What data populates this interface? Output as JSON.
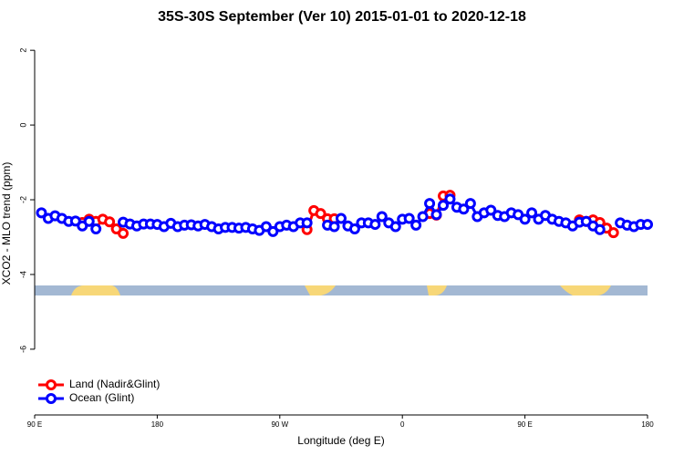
{
  "chart_data": {
    "type": "line",
    "title": "35S-30S September (Ver 10)   2015-01-01 to 2020-12-18",
    "x_label": "Longitude (deg E)",
    "y_label": "XCO2 - MLO trend (ppm)",
    "x": [
      95,
      100,
      105,
      110,
      115,
      120,
      125,
      130,
      135,
      140,
      145,
      150,
      155,
      160,
      165,
      170,
      175,
      180,
      185,
      190,
      195,
      200,
      205,
      210,
      215,
      220,
      225,
      230,
      235,
      240,
      245,
      250,
      255,
      260,
      265,
      270,
      275,
      280,
      285,
      290,
      295,
      300,
      305,
      310,
      315,
      320,
      325,
      330,
      335,
      340,
      345,
      350,
      355,
      360,
      365,
      370,
      375,
      380,
      385,
      390,
      395,
      400,
      405,
      410,
      415,
      420,
      425,
      430,
      435,
      440,
      445,
      450,
      455,
      460,
      465,
      470,
      475,
      480,
      485,
      490,
      495,
      500,
      505,
      510,
      515,
      520,
      525,
      530,
      535,
      540
    ],
    "series": [
      {
        "name": "Land (Nadir&Glint)",
        "color": "#ff0000",
        "values": [
          null,
          null,
          null,
          null,
          null,
          null,
          -2.61,
          -2.52,
          -2.58,
          -2.52,
          -2.59,
          -2.78,
          -2.9,
          null,
          null,
          null,
          null,
          null,
          null,
          null,
          null,
          null,
          null,
          null,
          null,
          null,
          null,
          null,
          null,
          null,
          null,
          null,
          null,
          null,
          null,
          null,
          null,
          null,
          null,
          -2.8,
          -2.29,
          -2.37,
          -2.51,
          -2.51,
          null,
          null,
          null,
          null,
          null,
          null,
          null,
          null,
          null,
          null,
          null,
          null,
          null,
          -2.37,
          -2.41,
          -1.9,
          -1.88,
          null,
          null,
          null,
          null,
          null,
          null,
          null,
          null,
          null,
          null,
          null,
          null,
          null,
          null,
          null,
          null,
          null,
          null,
          -2.54,
          -2.58,
          -2.54,
          -2.61,
          -2.76,
          -2.88,
          null,
          null,
          null,
          null,
          null
        ]
      },
      {
        "name": "Ocean (Glint)",
        "color": "#0000ff",
        "values": [
          -2.35,
          -2.5,
          -2.43,
          -2.5,
          -2.58,
          -2.57,
          -2.7,
          -2.58,
          -2.78,
          null,
          null,
          null,
          -2.6,
          -2.65,
          -2.7,
          -2.65,
          -2.65,
          -2.66,
          -2.72,
          -2.63,
          -2.72,
          -2.68,
          -2.67,
          -2.7,
          -2.66,
          -2.72,
          -2.78,
          -2.74,
          -2.74,
          -2.76,
          -2.74,
          -2.78,
          -2.82,
          -2.72,
          -2.85,
          -2.72,
          -2.68,
          -2.72,
          -2.62,
          -2.62,
          null,
          null,
          -2.68,
          -2.72,
          -2.5,
          -2.7,
          -2.78,
          -2.62,
          -2.62,
          -2.66,
          -2.45,
          -2.62,
          -2.72,
          -2.52,
          -2.5,
          -2.68,
          -2.45,
          -2.1,
          -2.4,
          -2.15,
          -1.98,
          -2.2,
          -2.25,
          -2.1,
          -2.45,
          -2.35,
          -2.28,
          -2.42,
          -2.45,
          -2.35,
          -2.4,
          -2.52,
          -2.35,
          -2.52,
          -2.42,
          -2.52,
          -2.58,
          -2.62,
          -2.7,
          -2.6,
          -2.58,
          -2.7,
          -2.8,
          null,
          null,
          -2.62,
          -2.68,
          -2.72,
          -2.66,
          -2.66
        ]
      }
    ],
    "xlim": [
      90,
      540
    ],
    "xticks": [
      {
        "value": 90,
        "label": "90 E"
      },
      180,
      {
        "value": 270,
        "label": "90 W"
      },
      {
        "value": 360,
        "label": "0"
      },
      {
        "value": 450,
        "label": "90 E"
      },
      {
        "value": 540,
        "label": "180"
      }
    ],
    "ylim": [
      -7.76,
      2.37
    ],
    "yticks": [
      -6,
      -4,
      -2,
      0,
      2
    ],
    "legend": "bottom-left"
  }
}
